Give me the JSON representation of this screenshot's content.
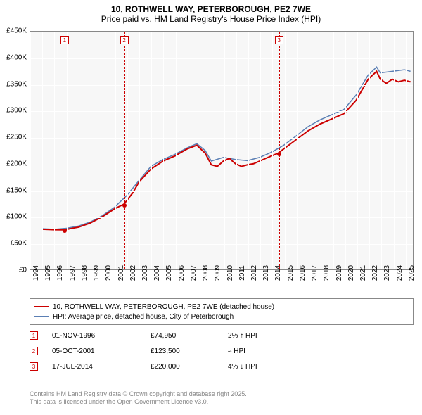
{
  "title": {
    "line1": "10, ROTHWELL WAY, PETERBOROUGH, PE2 7WE",
    "line2": "Price paid vs. HM Land Registry's House Price Index (HPI)"
  },
  "chart": {
    "type": "line",
    "background_color": "#f7f7f7",
    "grid_color": "#ffffff",
    "border_color": "#888888",
    "xlim": [
      1994,
      2025.7
    ],
    "ylim": [
      0,
      450000
    ],
    "ytick_step": 50000,
    "yticks": [
      "£0",
      "£50K",
      "£100K",
      "£150K",
      "£200K",
      "£250K",
      "£300K",
      "£350K",
      "£400K",
      "£450K"
    ],
    "xticks": [
      1994,
      1995,
      1996,
      1997,
      1998,
      1999,
      2000,
      2001,
      2002,
      2003,
      2004,
      2005,
      2006,
      2007,
      2008,
      2009,
      2010,
      2011,
      2012,
      2013,
      2014,
      2015,
      2016,
      2017,
      2018,
      2019,
      2020,
      2021,
      2022,
      2023,
      2024,
      2025
    ],
    "series": {
      "property": {
        "label": "10, ROTHWELL WAY, PETERBOROUGH, PE2 7WE (detached house)",
        "color": "#cc0000",
        "line_width": 2,
        "data": [
          [
            1995.0,
            76000
          ],
          [
            1996.0,
            75000
          ],
          [
            1996.84,
            74950
          ],
          [
            1997.5,
            78000
          ],
          [
            1998.0,
            80000
          ],
          [
            1999.0,
            88000
          ],
          [
            2000.0,
            100000
          ],
          [
            2001.0,
            115000
          ],
          [
            2001.76,
            123500
          ],
          [
            2002.5,
            145000
          ],
          [
            2003.0,
            165000
          ],
          [
            2004.0,
            190000
          ],
          [
            2005.0,
            205000
          ],
          [
            2006.0,
            215000
          ],
          [
            2007.0,
            228000
          ],
          [
            2007.8,
            235000
          ],
          [
            2008.5,
            220000
          ],
          [
            2009.0,
            198000
          ],
          [
            2009.5,
            195000
          ],
          [
            2010.0,
            205000
          ],
          [
            2010.5,
            210000
          ],
          [
            2011.0,
            200000
          ],
          [
            2011.5,
            195000
          ],
          [
            2012.0,
            198000
          ],
          [
            2012.5,
            200000
          ],
          [
            2013.0,
            205000
          ],
          [
            2013.5,
            210000
          ],
          [
            2014.0,
            215000
          ],
          [
            2014.54,
            220000
          ],
          [
            2015.0,
            228000
          ],
          [
            2016.0,
            245000
          ],
          [
            2017.0,
            262000
          ],
          [
            2018.0,
            275000
          ],
          [
            2019.0,
            285000
          ],
          [
            2020.0,
            295000
          ],
          [
            2021.0,
            320000
          ],
          [
            2022.0,
            360000
          ],
          [
            2022.7,
            375000
          ],
          [
            2023.0,
            360000
          ],
          [
            2023.5,
            352000
          ],
          [
            2024.0,
            360000
          ],
          [
            2024.5,
            355000
          ],
          [
            2025.0,
            358000
          ],
          [
            2025.5,
            355000
          ]
        ]
      },
      "hpi": {
        "label": "HPI: Average price, detached house, City of Peterborough",
        "color": "#5b7fb4",
        "line_width": 1.5,
        "data": [
          [
            1995.0,
            77000
          ],
          [
            1996.0,
            76000
          ],
          [
            1997.0,
            78000
          ],
          [
            1998.0,
            82000
          ],
          [
            1999.0,
            90000
          ],
          [
            2000.0,
            102000
          ],
          [
            2001.0,
            118000
          ],
          [
            2002.0,
            140000
          ],
          [
            2003.0,
            168000
          ],
          [
            2004.0,
            195000
          ],
          [
            2005.0,
            208000
          ],
          [
            2006.0,
            218000
          ],
          [
            2007.0,
            230000
          ],
          [
            2007.8,
            238000
          ],
          [
            2008.5,
            225000
          ],
          [
            2009.0,
            205000
          ],
          [
            2010.0,
            212000
          ],
          [
            2011.0,
            208000
          ],
          [
            2012.0,
            206000
          ],
          [
            2013.0,
            212000
          ],
          [
            2014.0,
            222000
          ],
          [
            2015.0,
            235000
          ],
          [
            2016.0,
            252000
          ],
          [
            2017.0,
            270000
          ],
          [
            2018.0,
            283000
          ],
          [
            2019.0,
            293000
          ],
          [
            2020.0,
            303000
          ],
          [
            2021.0,
            330000
          ],
          [
            2022.0,
            368000
          ],
          [
            2022.7,
            383000
          ],
          [
            2023.0,
            372000
          ],
          [
            2024.0,
            375000
          ],
          [
            2025.0,
            378000
          ],
          [
            2025.5,
            375000
          ]
        ]
      }
    },
    "sale_markers": [
      {
        "n": "1",
        "year": 1996.84,
        "price": 74950
      },
      {
        "n": "2",
        "year": 2001.76,
        "price": 123500
      },
      {
        "n": "3",
        "year": 2014.54,
        "price": 220000
      }
    ]
  },
  "legend": [
    {
      "color": "#cc0000",
      "width": 2,
      "label": "10, ROTHWELL WAY, PETERBOROUGH, PE2 7WE (detached house)"
    },
    {
      "color": "#5b7fb4",
      "width": 1.5,
      "label": "HPI: Average price, detached house, City of Peterborough"
    }
  ],
  "sales": [
    {
      "n": "1",
      "date": "01-NOV-1996",
      "price": "£74,950",
      "hpi": "2% ↑ HPI"
    },
    {
      "n": "2",
      "date": "05-OCT-2001",
      "price": "£123,500",
      "hpi": "≈ HPI"
    },
    {
      "n": "3",
      "date": "17-JUL-2014",
      "price": "£220,000",
      "hpi": "4% ↓ HPI"
    }
  ],
  "footer": {
    "line1": "Contains HM Land Registry data © Crown copyright and database right 2025.",
    "line2": "This data is licensed under the Open Government Licence v3.0."
  }
}
